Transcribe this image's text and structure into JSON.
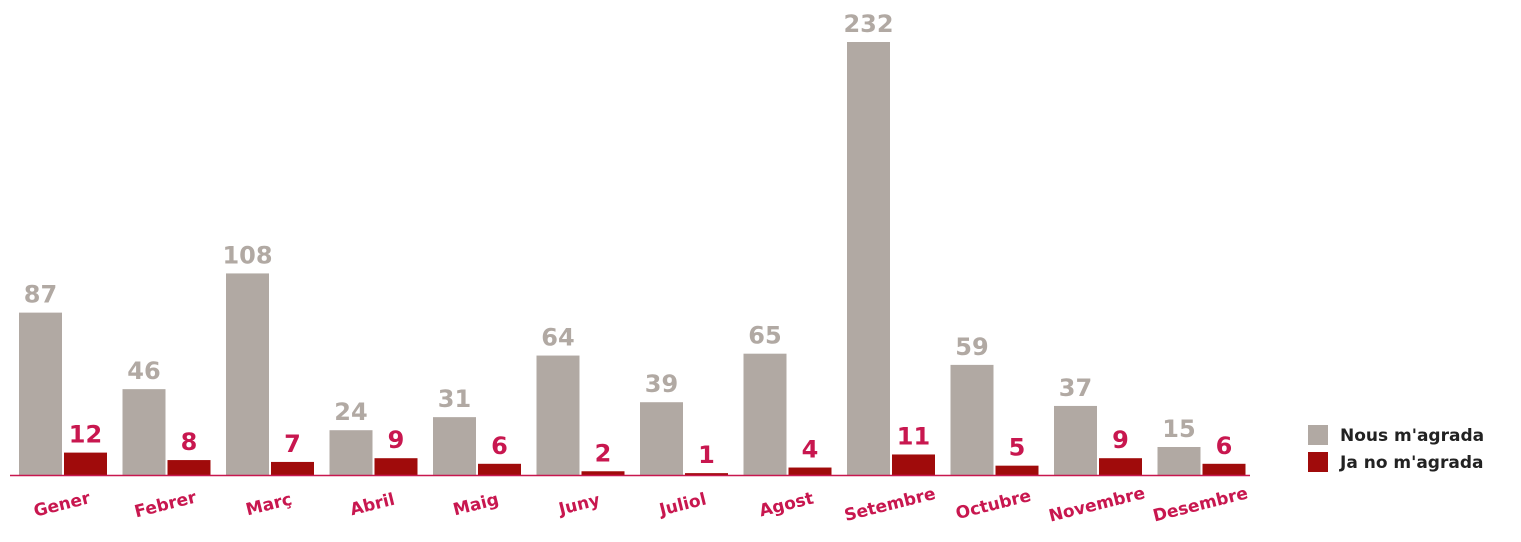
{
  "chart_data": {
    "type": "bar",
    "categories": [
      "Gener",
      "Febrer",
      "Març",
      "Abril",
      "Maig",
      "Juny",
      "Juliol",
      "Agost",
      "Setembre",
      "Octubre",
      "Novembre",
      "Desembre"
    ],
    "series": [
      {
        "name": "Nous m'agrada",
        "color": "#b1a9a3",
        "values": [
          87,
          46,
          108,
          24,
          31,
          64,
          39,
          65,
          232,
          59,
          37,
          15
        ]
      },
      {
        "name": "Ja no m'agrada",
        "color": "#a00b0b",
        "values": [
          12,
          8,
          7,
          9,
          6,
          2,
          1,
          4,
          11,
          5,
          9,
          6
        ]
      }
    ],
    "legend": "right"
  }
}
